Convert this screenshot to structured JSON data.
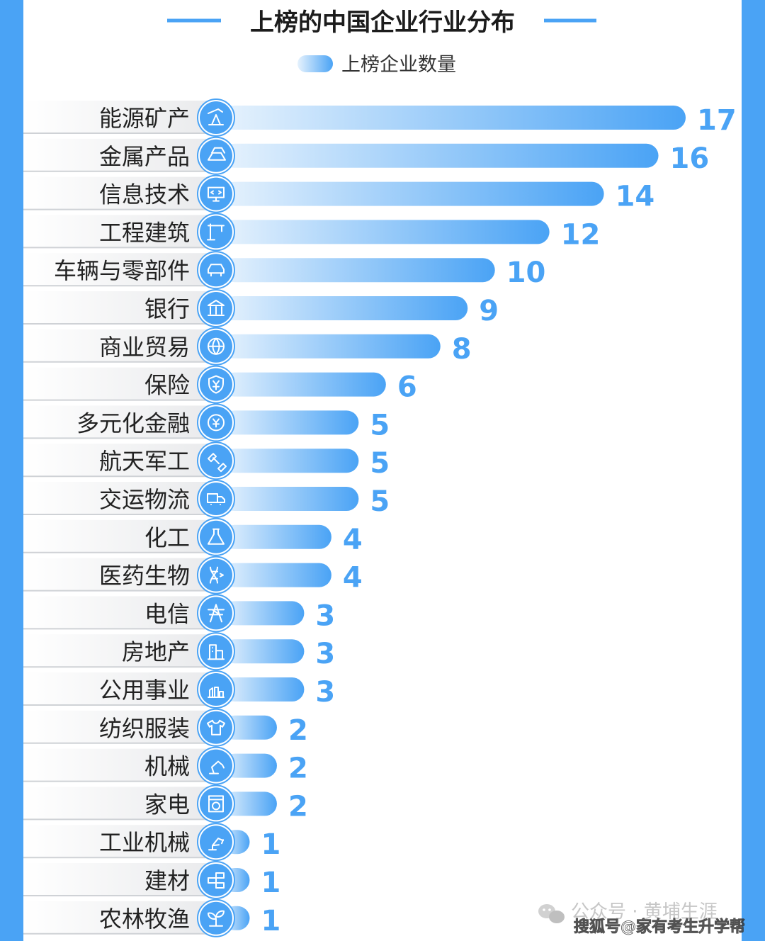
{
  "chart_data": {
    "type": "bar",
    "title": "上榜的中国企业行业分布",
    "legend": {
      "label": "上榜企业数量",
      "placement": "top-center"
    },
    "orientation": "horizontal",
    "categories": [
      "能源矿产",
      "金属产品",
      "信息技术",
      "工程建筑",
      "车辆与零部件",
      "银行",
      "商业贸易",
      "保险",
      "多元化金融",
      "航天军工",
      "交运物流",
      "化工",
      "医药生物",
      "电信",
      "房地产",
      "公用事业",
      "纺织服装",
      "机械",
      "家电",
      "工业机械",
      "建材",
      "农林牧渔"
    ],
    "series": [
      {
        "name": "上榜企业数量",
        "values": [
          17,
          16,
          14,
          12,
          10,
          9,
          8,
          6,
          5,
          5,
          5,
          4,
          4,
          3,
          3,
          3,
          2,
          2,
          2,
          1,
          1,
          1
        ]
      }
    ],
    "icons": [
      "oil-pump-icon",
      "metal-ingot-icon",
      "monitor-code-icon",
      "crane-icon",
      "car-icon",
      "bank-icon",
      "globe-icon",
      "shield-yen-icon",
      "currency-exchange-icon",
      "satellite-icon",
      "truck-icon",
      "flask-icon",
      "dna-icon",
      "transmission-tower-icon",
      "building-icon",
      "utility-plant-icon",
      "tshirt-icon",
      "robot-arm-icon",
      "washing-machine-icon",
      "industrial-robot-icon",
      "bricks-icon",
      "seedling-icon"
    ],
    "xlim": [
      0,
      17
    ],
    "grid": false,
    "colors": {
      "bar_start": "#e3f0fc",
      "bar_end": "#4aa3f5",
      "value_text": "#4aa3f5",
      "background": "#ffffff",
      "frame": "#4aa3f5"
    }
  },
  "watermark": {
    "line1": "公众号 · 黄埔生涯",
    "line2": "搜狐号@家有考生升学帮"
  }
}
